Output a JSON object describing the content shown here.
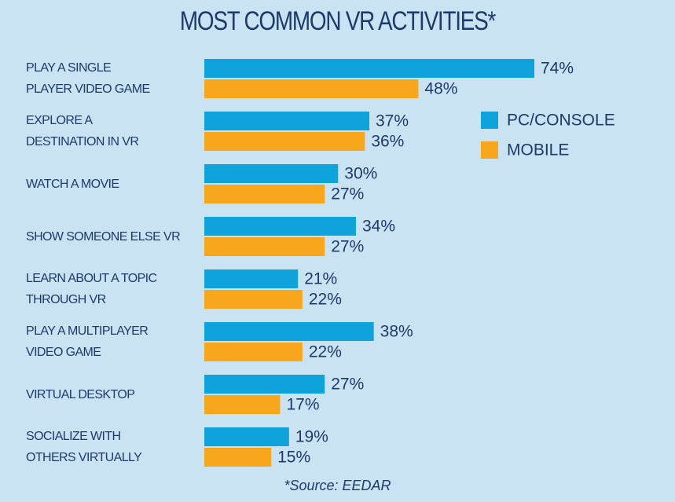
{
  "chart_data": {
    "type": "bar",
    "orientation": "horizontal",
    "title": "MOST COMMON VR ACTIVITIES*",
    "source": "*Source: EEDAR",
    "categories": [
      "PLAY A SINGLE\nPLAYER VIDEO GAME",
      "EXPLORE A\nDESTINATION IN VR",
      "WATCH A MOVIE",
      "SHOW SOMEONE ELSE VR",
      "LEARN ABOUT A TOPIC\nTHROUGH VR",
      "PLAY A MULTIPLAYER\nVIDEO GAME",
      "VIRTUAL DESKTOP",
      "SOCIALIZE WITH\nOTHERS VIRTUALLY"
    ],
    "series": [
      {
        "name": "PC/CONSOLE",
        "color": "#0fa3db",
        "values": [
          74,
          37,
          30,
          34,
          21,
          38,
          27,
          19
        ],
        "value_labels": [
          "74%",
          "37%",
          "30%",
          "34%",
          "21%",
          "38%",
          "27%",
          "19%"
        ]
      },
      {
        "name": "MOBILE",
        "color": "#f8a61c",
        "values": [
          48,
          36,
          27,
          27,
          22,
          22,
          17,
          15
        ],
        "value_labels": [
          "48%",
          "36%",
          "27%",
          "27%",
          "22%",
          "22%",
          "17%",
          "15%"
        ]
      }
    ],
    "legend": "right"
  }
}
